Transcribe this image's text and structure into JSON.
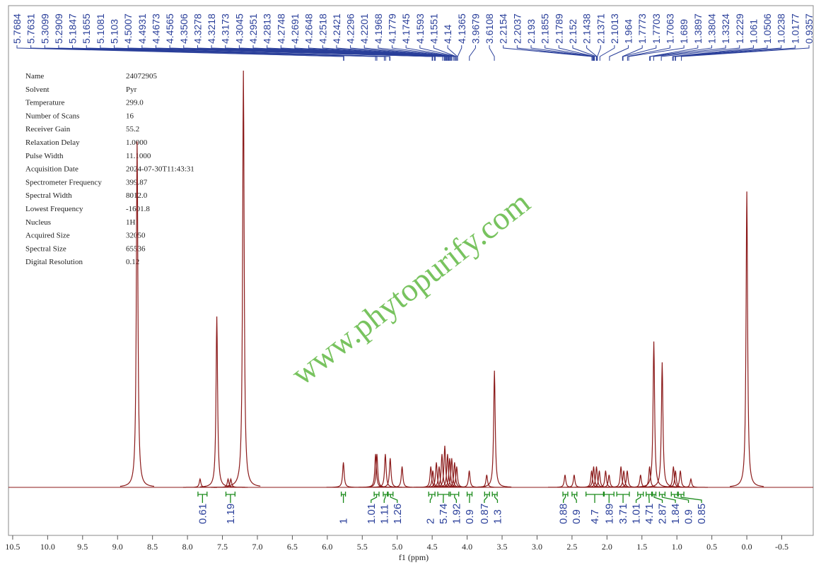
{
  "chart_data": {
    "type": "nmr",
    "xlabel": "f1 (ppm)",
    "watermark": "www.phytopurify.com",
    "xlim": [
      10.56,
      -0.95
    ],
    "ylim": [
      0,
      100
    ],
    "grid": false,
    "color": "#8b1a1a",
    "xticks": [
      {
        "value": 10.5,
        "label": "10.5"
      },
      {
        "value": 10,
        "label": "10.0"
      },
      9.5,
      {
        "value": 9,
        "label": "9.0"
      },
      8.5,
      {
        "value": 8,
        "label": "8.0"
      },
      7.5,
      {
        "value": 7,
        "label": "7.0"
      },
      6.5,
      {
        "value": 6,
        "label": "6.0"
      },
      5.5,
      {
        "value": 5,
        "label": "5.0"
      },
      4.5,
      {
        "value": 4,
        "label": "4.0"
      },
      3.5,
      {
        "value": 3,
        "label": "3.0"
      },
      2.5,
      {
        "value": 2,
        "label": "2.0"
      },
      1.5,
      {
        "value": 1,
        "label": "1.0"
      },
      0.5,
      {
        "value": 0,
        "label": "0.0"
      },
      -0.5
    ],
    "parameters": [
      {
        "name": "Name",
        "value": "24072905"
      },
      {
        "name": "Solvent",
        "value": "Pyr"
      },
      {
        "name": "Temperature",
        "value": "299.0"
      },
      {
        "name": "Number of Scans",
        "value": "16"
      },
      {
        "name": "Receiver Gain",
        "value": "55.2"
      },
      {
        "name": "Relaxation Delay",
        "value": "1.0000"
      },
      {
        "name": "Pulse Width",
        "value": "11.1000"
      },
      {
        "name": "Acquisition Date",
        "value": "2024-07-30T11:43:31"
      },
      {
        "name": "Spectrometer Frequency",
        "value": "399.87"
      },
      {
        "name": "Spectral Width",
        "value": "8012.0"
      },
      {
        "name": "Lowest Frequency",
        "value": "-1601.8"
      },
      {
        "name": "Nucleus",
        "value": "1H"
      },
      {
        "name": "Acquired Size",
        "value": "32050"
      },
      {
        "name": "Spectral Size",
        "value": "65536"
      },
      {
        "name": "Digital Resolution",
        "value": "0.12"
      }
    ],
    "peak_labels": [
      5.7684,
      5.7631,
      5.3099,
      5.2909,
      5.1847,
      5.1655,
      5.1081,
      5.103,
      4.5007,
      4.4931,
      4.4673,
      4.4565,
      4.3506,
      4.3278,
      4.3218,
      4.3173,
      4.3045,
      4.2951,
      4.2813,
      4.2748,
      4.2691,
      4.2648,
      4.2518,
      4.2421,
      4.2296,
      4.2201,
      4.1968,
      4.1779,
      4.1745,
      4.1593,
      4.1551,
      4.14,
      4.1365,
      3.9679,
      3.6108,
      2.2154,
      2.2037,
      2.193,
      2.1855,
      2.1789,
      2.152,
      2.1438,
      2.1371,
      2.1013,
      1.964,
      1.7773,
      1.7703,
      1.7063,
      1.689,
      1.3897,
      1.3804,
      1.3324,
      1.2229,
      1.061,
      1.0506,
      1.0238,
      1.0177,
      0.9357
    ],
    "peaks": {
      "x": [
        8.72,
        7.82,
        7.58,
        7.42,
        7.38,
        7.2,
        5.77,
        5.31,
        5.29,
        5.17,
        5.1,
        4.93,
        4.52,
        4.49,
        4.44,
        4.4,
        4.36,
        4.32,
        4.28,
        4.25,
        4.22,
        4.18,
        4.15,
        3.97,
        3.72,
        3.61,
        2.6,
        2.47,
        2.22,
        2.19,
        2.15,
        2.11,
        2.02,
        1.97,
        1.8,
        1.76,
        1.71,
        1.52,
        1.39,
        1.33,
        1.21,
        1.05,
        1.02,
        0.95,
        0.8,
        0.0
      ],
      "y": [
        83,
        2,
        41,
        2,
        2,
        100,
        6,
        8,
        8,
        8,
        7,
        5,
        5,
        4,
        6,
        5,
        8,
        10,
        8,
        7,
        7,
        6,
        5,
        4,
        3,
        28,
        3,
        3,
        4,
        5,
        5,
        4,
        4,
        3,
        5,
        4,
        4,
        3,
        5,
        35,
        30,
        5,
        4,
        4,
        2,
        71
      ]
    },
    "integrals": [
      {
        "range": [
          7.85,
          7.72
        ],
        "value": 0.61
      },
      {
        "range": [
          7.45,
          7.32
        ],
        "value": 1.19
      },
      {
        "range": [
          5.8,
          5.74
        ],
        "value": 1.0
      },
      {
        "range": [
          5.33,
          5.26
        ],
        "value": 1.01
      },
      {
        "range": [
          5.2,
          5.14
        ],
        "value": 1.11
      },
      {
        "range": [
          5.13,
          5.06
        ],
        "value": 1.26
      },
      {
        "range": [
          4.55,
          4.46
        ],
        "value": 2.0
      },
      {
        "range": [
          4.42,
          4.26
        ],
        "value": 5.74
      },
      {
        "range": [
          4.24,
          4.12
        ],
        "value": 1.92
      },
      {
        "range": [
          4.0,
          3.93
        ],
        "value": 0.9
      },
      {
        "range": [
          3.75,
          3.68
        ],
        "value": 0.87
      },
      {
        "range": [
          3.64,
          3.57
        ],
        "value": 1.3
      },
      {
        "range": [
          2.63,
          2.56
        ],
        "value": 0.88
      },
      {
        "range": [
          2.5,
          2.43
        ],
        "value": 0.9
      },
      {
        "range": [
          2.3,
          2.05
        ],
        "value": 4.7
      },
      {
        "range": [
          2.04,
          1.9
        ],
        "value": 1.89
      },
      {
        "range": [
          1.86,
          1.68
        ],
        "value": 3.71
      },
      {
        "range": [
          1.56,
          1.48
        ],
        "value": 1.01
      },
      {
        "range": [
          1.44,
          1.36
        ],
        "value": 4.71
      },
      {
        "range": [
          1.35,
          1.3
        ],
        "value": 2.87
      },
      {
        "range": [
          1.25,
          1.17
        ],
        "value": 1.84
      },
      {
        "range": [
          1.08,
          0.99
        ],
        "value": 0.9
      },
      {
        "range": [
          0.98,
          0.9
        ],
        "value": 0.85
      }
    ]
  }
}
